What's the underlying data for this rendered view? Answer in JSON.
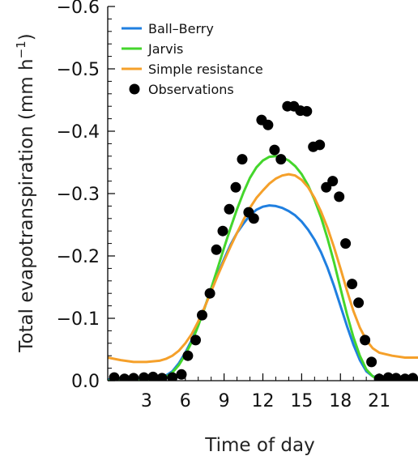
{
  "chart_data": {
    "type": "line",
    "title": "",
    "xlabel": "Time of day",
    "ylabel": "Total evapotranspiration (mm h⁻¹)",
    "ylabel_main": "Total evapotranspiration (mm h",
    "ylabel_sup": "−1",
    "ylabel_close": ")",
    "xlim": [
      0,
      24
    ],
    "ylim": [
      0.0,
      -0.6
    ],
    "x_ticks": [
      3,
      6,
      9,
      12,
      15,
      18,
      21
    ],
    "x_tick_labels": [
      "3",
      "6",
      "9",
      "12",
      "15",
      "18",
      "21"
    ],
    "y_ticks": [
      0.0,
      -0.1,
      -0.2,
      -0.3,
      -0.4,
      -0.5,
      -0.6
    ],
    "y_tick_labels": [
      "0.0",
      "−0.1",
      "−0.2",
      "−0.3",
      "−0.4",
      "−0.5",
      "−0.6"
    ],
    "grid": false,
    "legend_position": "top-left",
    "series": [
      {
        "name": "Ball–Berry",
        "kind": "line",
        "color": "#1f7fe0",
        "x": [
          0,
          1,
          2,
          3,
          4,
          4.5,
          5,
          5.5,
          6,
          6.5,
          7,
          7.5,
          8,
          8.5,
          9,
          9.5,
          10,
          10.5,
          11,
          11.5,
          12,
          12.5,
          13,
          13.5,
          14,
          14.5,
          15,
          15.5,
          16,
          16.5,
          17,
          17.5,
          18,
          18.5,
          19,
          19.5,
          20,
          20.5,
          21,
          22,
          23,
          24
        ],
        "y": [
          -0.002,
          -0.002,
          -0.002,
          -0.002,
          -0.004,
          -0.008,
          -0.015,
          -0.028,
          -0.045,
          -0.065,
          -0.09,
          -0.118,
          -0.145,
          -0.17,
          -0.195,
          -0.218,
          -0.237,
          -0.252,
          -0.265,
          -0.274,
          -0.279,
          -0.281,
          -0.28,
          -0.277,
          -0.272,
          -0.265,
          -0.255,
          -0.242,
          -0.226,
          -0.206,
          -0.181,
          -0.152,
          -0.12,
          -0.088,
          -0.058,
          -0.033,
          -0.015,
          -0.007,
          -0.005,
          -0.004,
          -0.003,
          -0.003
        ]
      },
      {
        "name": "Jarvis",
        "kind": "line",
        "color": "#44d62c",
        "x": [
          0,
          1,
          2,
          3,
          4,
          4.5,
          5,
          5.5,
          6,
          6.5,
          7,
          7.5,
          8,
          8.5,
          9,
          9.5,
          10,
          10.5,
          11,
          11.5,
          12,
          12.5,
          13,
          13.5,
          14,
          14.5,
          15,
          15.5,
          16,
          16.5,
          17,
          17.5,
          18,
          18.5,
          19,
          19.5,
          20,
          20.5,
          21,
          22,
          23,
          24
        ],
        "y": [
          0.0,
          0.0,
          0.0,
          0.0,
          -0.002,
          -0.006,
          -0.013,
          -0.025,
          -0.042,
          -0.062,
          -0.088,
          -0.117,
          -0.148,
          -0.18,
          -0.213,
          -0.245,
          -0.275,
          -0.302,
          -0.325,
          -0.342,
          -0.353,
          -0.359,
          -0.36,
          -0.358,
          -0.353,
          -0.344,
          -0.331,
          -0.313,
          -0.29,
          -0.262,
          -0.228,
          -0.19,
          -0.148,
          -0.107,
          -0.07,
          -0.04,
          -0.018,
          -0.007,
          -0.002,
          -0.001,
          -0.001,
          -0.001
        ]
      },
      {
        "name": "Simple resistance",
        "kind": "line",
        "color": "#f5a02a",
        "x": [
          0,
          1,
          2,
          3,
          4,
          4.5,
          5,
          5.5,
          6,
          6.5,
          7,
          7.5,
          8,
          8.5,
          9,
          9.5,
          10,
          10.5,
          11,
          11.5,
          12,
          12.5,
          13,
          13.5,
          14,
          14.5,
          15,
          15.5,
          16,
          16.5,
          17,
          17.5,
          18,
          18.5,
          19,
          19.5,
          20,
          20.5,
          21,
          22,
          23,
          24
        ],
        "y": [
          -0.037,
          -0.033,
          -0.03,
          -0.03,
          -0.032,
          -0.035,
          -0.04,
          -0.048,
          -0.06,
          -0.075,
          -0.095,
          -0.118,
          -0.143,
          -0.168,
          -0.192,
          -0.215,
          -0.237,
          -0.258,
          -0.277,
          -0.293,
          -0.305,
          -0.316,
          -0.324,
          -0.329,
          -0.331,
          -0.329,
          -0.322,
          -0.31,
          -0.293,
          -0.271,
          -0.245,
          -0.214,
          -0.18,
          -0.145,
          -0.112,
          -0.085,
          -0.065,
          -0.052,
          -0.045,
          -0.04,
          -0.037,
          -0.037
        ]
      },
      {
        "name": "Observations",
        "kind": "scatter",
        "color": "#000000",
        "x": [
          0.5,
          1.3,
          2.0,
          2.8,
          3.5,
          4.2,
          5.0,
          5.7,
          6.2,
          6.8,
          7.3,
          7.9,
          8.4,
          8.9,
          9.4,
          9.9,
          10.4,
          10.9,
          11.3,
          11.9,
          12.4,
          12.9,
          13.4,
          13.9,
          14.4,
          14.9,
          15.4,
          15.9,
          16.4,
          16.9,
          17.4,
          17.9,
          18.4,
          18.9,
          19.4,
          19.9,
          20.4,
          21.0,
          21.7,
          22.3,
          23.0,
          23.6
        ],
        "y": [
          -0.005,
          -0.003,
          -0.004,
          -0.005,
          -0.006,
          -0.004,
          -0.005,
          -0.01,
          -0.04,
          -0.065,
          -0.105,
          -0.14,
          -0.21,
          -0.24,
          -0.275,
          -0.31,
          -0.355,
          -0.27,
          -0.26,
          -0.418,
          -0.41,
          -0.37,
          -0.355,
          -0.44,
          -0.44,
          -0.433,
          -0.432,
          -0.375,
          -0.378,
          -0.31,
          -0.32,
          -0.295,
          -0.22,
          -0.155,
          -0.125,
          -0.065,
          -0.03,
          -0.003,
          -0.005,
          -0.004,
          -0.003,
          -0.004
        ]
      }
    ]
  }
}
